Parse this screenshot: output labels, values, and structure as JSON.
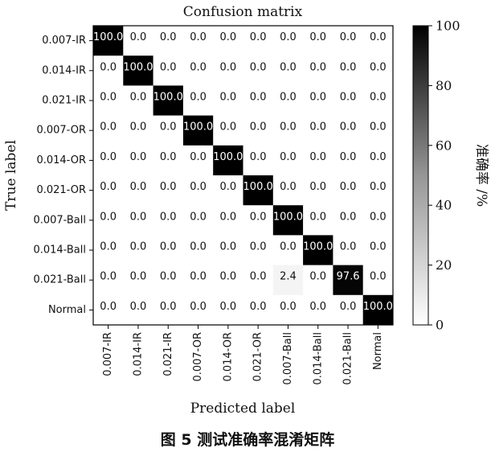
{
  "chart_data": {
    "type": "heatmap",
    "title": "Confusion matrix",
    "xlabel": "Predicted label",
    "ylabel": "True label",
    "colorbar_label": "准确率 /%",
    "colorbar_ticks": [
      0,
      20,
      40,
      60,
      80,
      100
    ],
    "vmin": 0,
    "vmax": 100,
    "cmap": "Greys",
    "row_labels": [
      "0.007-IR",
      "0.014-IR",
      "0.021-IR",
      "0.007-OR",
      "0.014-OR",
      "0.021-OR",
      "0.007-Ball",
      "0.014-Ball",
      "0.021-Ball",
      "Normal"
    ],
    "col_labels": [
      "0.007-IR",
      "0.014-IR",
      "0.021-IR",
      "0.007-OR",
      "0.014-OR",
      "0.021-OR",
      "0.007-Ball",
      "0.014-Ball",
      "0.021-Ball",
      "Normal"
    ],
    "values": [
      [
        100.0,
        0.0,
        0.0,
        0.0,
        0.0,
        0.0,
        0.0,
        0.0,
        0.0,
        0.0
      ],
      [
        0.0,
        100.0,
        0.0,
        0.0,
        0.0,
        0.0,
        0.0,
        0.0,
        0.0,
        0.0
      ],
      [
        0.0,
        0.0,
        100.0,
        0.0,
        0.0,
        0.0,
        0.0,
        0.0,
        0.0,
        0.0
      ],
      [
        0.0,
        0.0,
        0.0,
        100.0,
        0.0,
        0.0,
        0.0,
        0.0,
        0.0,
        0.0
      ],
      [
        0.0,
        0.0,
        0.0,
        0.0,
        100.0,
        0.0,
        0.0,
        0.0,
        0.0,
        0.0
      ],
      [
        0.0,
        0.0,
        0.0,
        0.0,
        0.0,
        100.0,
        0.0,
        0.0,
        0.0,
        0.0
      ],
      [
        0.0,
        0.0,
        0.0,
        0.0,
        0.0,
        0.0,
        100.0,
        0.0,
        0.0,
        0.0
      ],
      [
        0.0,
        0.0,
        0.0,
        0.0,
        0.0,
        0.0,
        0.0,
        100.0,
        0.0,
        0.0
      ],
      [
        0.0,
        0.0,
        0.0,
        0.0,
        0.0,
        0.0,
        2.4,
        0.0,
        97.6,
        0.0
      ],
      [
        0.0,
        0.0,
        0.0,
        0.0,
        0.0,
        0.0,
        0.0,
        0.0,
        0.0,
        100.0
      ]
    ]
  },
  "caption": "图 5   测试准确率混淆矩阵"
}
